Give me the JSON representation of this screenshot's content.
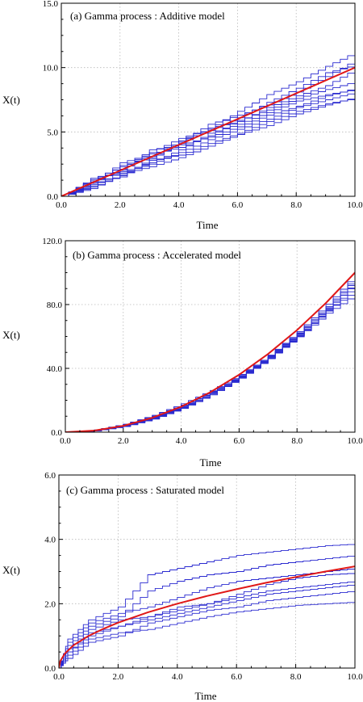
{
  "colors": {
    "sample_path": "#2a2ad0",
    "mean_curve": "#e01818",
    "axis": "#000000"
  },
  "chart_data": [
    {
      "type": "line",
      "title": "(a) Gamma process : Additive model",
      "xlabel": "Time",
      "ylabel": "X(t)",
      "xlim": [
        0,
        10
      ],
      "ylim": [
        0,
        15
      ],
      "xticks": [
        "0.0",
        "2.0",
        "4.0",
        "6.0",
        "8.0",
        "10.0"
      ],
      "yticks": [
        "0.0",
        "5.0",
        "10.0",
        "15.0"
      ],
      "grid": true,
      "series": [
        {
          "role": "mean",
          "x": [
            0,
            10
          ],
          "y": [
            0,
            10
          ]
        },
        {
          "role": "path",
          "x": [
            0,
            1,
            2,
            3,
            4,
            5,
            6,
            7,
            8,
            9,
            10
          ],
          "y": [
            0,
            1.2,
            2.0,
            3.4,
            4.5,
            5.2,
            6.6,
            7.9,
            8.9,
            10.1,
            11.2
          ]
        },
        {
          "role": "path",
          "x": [
            0,
            1,
            2,
            3,
            4,
            5,
            6,
            7,
            8,
            9,
            10
          ],
          "y": [
            0,
            0.8,
            1.9,
            2.6,
            3.6,
            4.9,
            5.6,
            6.5,
            7.4,
            7.9,
            8.3
          ]
        },
        {
          "role": "path",
          "x": [
            0,
            1,
            2,
            3,
            4,
            5,
            6,
            7,
            8,
            9,
            10
          ],
          "y": [
            0,
            1.0,
            1.5,
            2.8,
            3.2,
            4.1,
            4.9,
            5.8,
            6.6,
            7.2,
            7.6
          ]
        },
        {
          "role": "path",
          "x": [
            0,
            1,
            2,
            3,
            4,
            5,
            6,
            7,
            8,
            9,
            10
          ],
          "y": [
            0,
            1.3,
            2.3,
            3.0,
            4.2,
            5.6,
            6.3,
            7.1,
            8.1,
            9.3,
            10.6
          ]
        },
        {
          "role": "path",
          "x": [
            0,
            1,
            2,
            3,
            4,
            5,
            6,
            7,
            8,
            9,
            10
          ],
          "y": [
            0,
            0.6,
            1.7,
            2.3,
            3.0,
            3.9,
            4.8,
            5.5,
            6.4,
            7.1,
            7.7
          ]
        },
        {
          "role": "path",
          "x": [
            0,
            1,
            2,
            3,
            4,
            5,
            6,
            7,
            8,
            9,
            10
          ],
          "y": [
            0,
            1.1,
            2.1,
            3.6,
            4.0,
            4.6,
            5.4,
            6.3,
            7.0,
            7.8,
            8.4
          ]
        },
        {
          "role": "path",
          "x": [
            0,
            1,
            2,
            3,
            4,
            5,
            6,
            7,
            8,
            9,
            10
          ],
          "y": [
            0,
            0.9,
            2.4,
            3.1,
            4.3,
            5.1,
            6.1,
            7.3,
            8.4,
            9.6,
            10.2
          ]
        },
        {
          "role": "path",
          "x": [
            0,
            1,
            2,
            3,
            4,
            5,
            6,
            7,
            8,
            9,
            10
          ],
          "y": [
            0,
            1.4,
            1.8,
            2.5,
            3.4,
            4.4,
            5.2,
            6.0,
            6.9,
            7.5,
            8.1
          ]
        },
        {
          "role": "path",
          "x": [
            0,
            1,
            2,
            3,
            4,
            5,
            6,
            7,
            8,
            9,
            10
          ],
          "y": [
            0,
            1.0,
            2.6,
            3.3,
            3.8,
            4.7,
            5.9,
            6.7,
            7.6,
            8.3,
            8.9
          ]
        },
        {
          "role": "path",
          "x": [
            0,
            1,
            2,
            3,
            4,
            5,
            6,
            7,
            8,
            9,
            10
          ],
          "y": [
            0,
            0.7,
            1.6,
            2.9,
            4.1,
            5.3,
            5.8,
            6.9,
            7.8,
            8.6,
            9.9
          ]
        }
      ]
    },
    {
      "type": "line",
      "title": "(b) Gamma process : Accelerated  model",
      "xlabel": "Time",
      "ylabel": "X(t)",
      "xlim": [
        0,
        10
      ],
      "ylim": [
        0,
        120
      ],
      "xticks": [
        "0.0",
        "2.0",
        "4.0",
        "6.0",
        "8.0",
        "10.0"
      ],
      "yticks": [
        "0.0",
        "40.0",
        "80.0",
        "120.0"
      ],
      "grid": true,
      "series": [
        {
          "role": "mean",
          "x": [
            0,
            1,
            2,
            3,
            4,
            5,
            6,
            7,
            8,
            9,
            10
          ],
          "y": [
            0,
            1,
            4,
            9,
            16,
            25,
            36,
            49,
            64,
            81,
            100
          ]
        },
        {
          "role": "path",
          "x": [
            0,
            1,
            2,
            3,
            4,
            5,
            6,
            7,
            8,
            9,
            10
          ],
          "y": [
            0,
            1.2,
            4.6,
            9.8,
            17.0,
            25.3,
            35.1,
            47.2,
            61.5,
            78.0,
            96.5
          ]
        },
        {
          "role": "path",
          "x": [
            0,
            1,
            2,
            3,
            4,
            5,
            6,
            7,
            8,
            9,
            10
          ],
          "y": [
            0,
            0.8,
            3.5,
            8.2,
            14.9,
            23.4,
            33.8,
            46.1,
            60.2,
            75.9,
            92.0
          ]
        },
        {
          "role": "path",
          "x": [
            0,
            1,
            2,
            3,
            4,
            5,
            6,
            7,
            8,
            9,
            10
          ],
          "y": [
            0,
            1.4,
            5.0,
            10.6,
            17.8,
            26.2,
            35.6,
            48.3,
            63.1,
            80.2,
            99.0
          ]
        },
        {
          "role": "path",
          "x": [
            0,
            1,
            2,
            3,
            4,
            5,
            6,
            7,
            8,
            9,
            10
          ],
          "y": [
            0,
            0.9,
            3.9,
            8.8,
            15.6,
            24.0,
            34.5,
            46.9,
            60.9,
            76.4,
            89.0
          ]
        },
        {
          "role": "path",
          "x": [
            0,
            1,
            2,
            3,
            4,
            5,
            6,
            7,
            8,
            9,
            10
          ],
          "y": [
            0,
            1.1,
            4.3,
            9.4,
            16.4,
            25.6,
            36.2,
            48.0,
            62.3,
            78.8,
            97.5
          ]
        },
        {
          "role": "path",
          "x": [
            0,
            1,
            2,
            3,
            4,
            5,
            6,
            7,
            8,
            9,
            10
          ],
          "y": [
            0,
            1.0,
            4.1,
            9.1,
            16.0,
            24.6,
            34.9,
            46.5,
            59.8,
            74.6,
            86.5
          ]
        },
        {
          "role": "path",
          "x": [
            0,
            1,
            2,
            3,
            4,
            5,
            6,
            7,
            8,
            9,
            10
          ],
          "y": [
            0,
            1.3,
            4.8,
            10.1,
            16.9,
            25.0,
            35.3,
            47.6,
            62.0,
            77.5,
            94.0
          ]
        },
        {
          "role": "path",
          "x": [
            0,
            1,
            2,
            3,
            4,
            5,
            6,
            7,
            8,
            9,
            10
          ],
          "y": [
            0,
            0.7,
            3.7,
            8.5,
            15.2,
            23.9,
            34.2,
            46.3,
            60.5,
            76.9,
            95.0
          ]
        }
      ]
    },
    {
      "type": "line",
      "title": "(c) Gamma process : Saturated model",
      "xlabel": "Time",
      "ylabel": "X(t)",
      "xlim": [
        0,
        10
      ],
      "ylim": [
        0,
        6
      ],
      "xticks": [
        "0.0",
        "2.0",
        "4.0",
        "6.0",
        "8.0",
        "10.0"
      ],
      "yticks": [
        "0.0",
        "2.0",
        "4.0",
        "6.0"
      ],
      "grid": true,
      "series": [
        {
          "role": "mean",
          "x": [
            0,
            0.05,
            0.2,
            0.5,
            1,
            1.5,
            2,
            3,
            4,
            5,
            6,
            7,
            8,
            9,
            10
          ],
          "y": [
            0,
            0.22,
            0.45,
            0.71,
            1.0,
            1.22,
            1.41,
            1.73,
            2.0,
            2.24,
            2.45,
            2.65,
            2.83,
            3.0,
            3.16
          ]
        },
        {
          "role": "path",
          "x": [
            0,
            0.3,
            1,
            2,
            3,
            4,
            5,
            6,
            7,
            8,
            9,
            10
          ],
          "y": [
            0,
            0.9,
            1.5,
            1.9,
            2.9,
            3.1,
            3.3,
            3.5,
            3.6,
            3.7,
            3.8,
            3.85
          ]
        },
        {
          "role": "path",
          "x": [
            0,
            0.3,
            1,
            2,
            3,
            4,
            5,
            6,
            7,
            8,
            9,
            10
          ],
          "y": [
            0,
            0.5,
            1.0,
            1.3,
            1.5,
            1.7,
            1.9,
            2.1,
            2.3,
            2.4,
            2.5,
            2.6
          ]
        },
        {
          "role": "path",
          "x": [
            0,
            0.3,
            1,
            2,
            3,
            4,
            5,
            6,
            7,
            8,
            9,
            10
          ],
          "y": [
            0,
            0.7,
            1.3,
            1.6,
            2.4,
            2.7,
            2.9,
            3.0,
            3.2,
            3.3,
            3.4,
            3.5
          ]
        },
        {
          "role": "path",
          "x": [
            0,
            0.3,
            1,
            2,
            3,
            4,
            5,
            6,
            7,
            8,
            9,
            10
          ],
          "y": [
            0,
            0.4,
            0.9,
            1.1,
            1.2,
            1.4,
            1.6,
            1.75,
            1.85,
            1.95,
            2.0,
            2.05
          ]
        },
        {
          "role": "path",
          "x": [
            0,
            0.3,
            1,
            2,
            3,
            4,
            5,
            6,
            7,
            8,
            9,
            10
          ],
          "y": [
            0,
            0.6,
            1.2,
            1.5,
            1.6,
            1.8,
            2.0,
            2.3,
            2.6,
            2.8,
            2.9,
            2.95
          ]
        },
        {
          "role": "path",
          "x": [
            0,
            0.3,
            1,
            2,
            3,
            4,
            5,
            6,
            7,
            8,
            9,
            10
          ],
          "y": [
            0,
            0.3,
            0.8,
            1.0,
            1.4,
            1.6,
            1.8,
            1.9,
            2.1,
            2.2,
            2.3,
            2.4
          ]
        },
        {
          "role": "path",
          "x": [
            0,
            0.3,
            1,
            2,
            3,
            4,
            5,
            6,
            7,
            8,
            9,
            10
          ],
          "y": [
            0,
            0.8,
            1.4,
            1.7,
            1.9,
            2.2,
            2.5,
            2.7,
            2.8,
            2.9,
            3.0,
            3.1
          ]
        },
        {
          "role": "path",
          "x": [
            0,
            0.3,
            1,
            2,
            3,
            4,
            5,
            6,
            7,
            8,
            9,
            10
          ],
          "y": [
            0,
            0.5,
            1.1,
            1.3,
            1.6,
            1.9,
            2.0,
            2.2,
            2.4,
            2.5,
            2.6,
            2.7
          ]
        }
      ]
    }
  ]
}
